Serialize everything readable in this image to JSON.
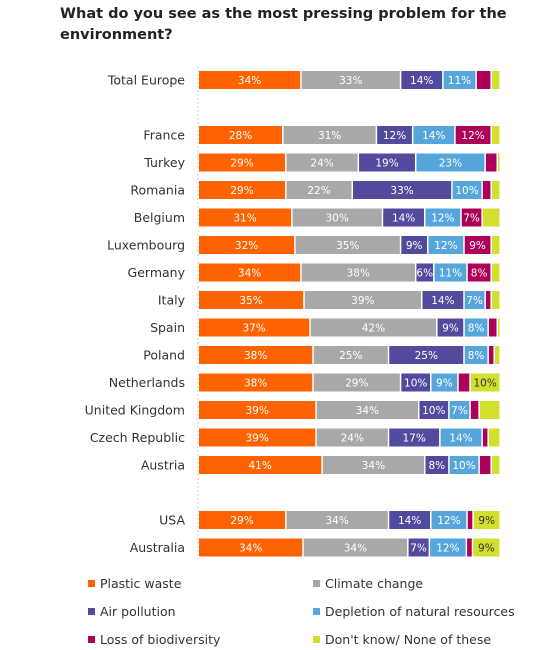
{
  "chart_data": {
    "type": "bar",
    "orientation": "horizontal",
    "stacked": true,
    "title": "What do you see as the most pressing problem for the environment?",
    "categories": [
      "Total Europe",
      "France",
      "Turkey",
      "Romania",
      "Belgium",
      "Luxembourg",
      "Germany",
      "Italy",
      "Spain",
      "Poland",
      "Netherlands",
      "United Kingdom",
      "Czech Republic",
      "Austria",
      "USA",
      "Australia"
    ],
    "groups": [
      1,
      13,
      2
    ],
    "series": [
      {
        "name": "Plastic waste",
        "color": "#ff6200",
        "label_color": "#ffffff",
        "values": [
          34,
          28,
          29,
          29,
          31,
          32,
          34,
          35,
          37,
          38,
          38,
          39,
          39,
          41,
          29,
          34
        ],
        "labels": [
          "34%",
          "28%",
          "29%",
          "29%",
          "31%",
          "32%",
          "34%",
          "35%",
          "37%",
          "38%",
          "38%",
          "39%",
          "39%",
          "41%",
          "29%",
          "34%"
        ]
      },
      {
        "name": "Climate change",
        "color": "#a8a8a8",
        "label_color": "#ffffff",
        "values": [
          33,
          31,
          24,
          22,
          30,
          35,
          38,
          39,
          42,
          25,
          29,
          34,
          24,
          34,
          34,
          34
        ],
        "labels": [
          "33%",
          "31%",
          "24%",
          "22%",
          "30%",
          "35%",
          "38%",
          "39%",
          "42%",
          "25%",
          "29%",
          "34%",
          "24%",
          "34%",
          "34%",
          "34%"
        ]
      },
      {
        "name": "Air pollution",
        "color": "#524a9c",
        "label_color": "#ffffff",
        "values": [
          14,
          12,
          19,
          33,
          14,
          9,
          6,
          14,
          9,
          25,
          10,
          10,
          17,
          8,
          14,
          7
        ],
        "labels": [
          "14%",
          "12%",
          "19%",
          "33%",
          "14%",
          "9%",
          "6%",
          "14%",
          "9%",
          "25%",
          "10%",
          "10%",
          "17%",
          "8%",
          "14%",
          "7%"
        ]
      },
      {
        "name": "Depletion of natural resources",
        "color": "#56a6dc",
        "label_color": "#ffffff",
        "values": [
          11,
          14,
          23,
          10,
          12,
          12,
          11,
          7,
          8,
          8,
          9,
          7,
          14,
          10,
          12,
          12
        ],
        "labels": [
          "11%",
          "14%",
          "23%",
          "10%",
          "12%",
          "12%",
          "11%",
          "7%",
          "8%",
          "8%",
          "9%",
          "7%",
          "14%",
          "10%",
          "12%",
          "12%"
        ]
      },
      {
        "name": "Loss of biodiversity",
        "color": "#ad0059",
        "label_color": "#ffffff",
        "values": [
          5,
          12,
          4,
          3,
          7,
          9,
          8,
          2,
          3,
          2,
          4,
          3,
          2,
          4,
          2,
          2
        ],
        "labels": [
          "",
          "12%",
          "",
          "",
          "7%",
          "9%",
          "8%",
          "",
          "",
          "",
          "",
          "",
          "",
          "",
          "",
          ""
        ]
      },
      {
        "name": "Don't know/ None of these",
        "color": "#d2df2c",
        "label_color": "#333333",
        "values": [
          3,
          3,
          1,
          3,
          6,
          3,
          3,
          3,
          1,
          2,
          10,
          7,
          4,
          3,
          9,
          9
        ],
        "labels": [
          "",
          "",
          "",
          "",
          "",
          "",
          "",
          "",
          "",
          "",
          "10%",
          "",
          "",
          "",
          "9%",
          "9%"
        ]
      }
    ],
    "xlim": [
      0,
      100
    ],
    "grid": false,
    "legend": "bottom"
  }
}
